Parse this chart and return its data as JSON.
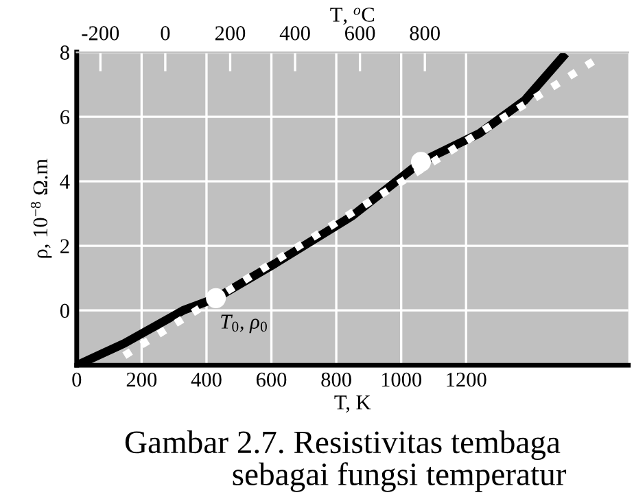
{
  "chart_data": {
    "type": "line",
    "xlabel": "T, K",
    "ylabel": "ρ, 10$^{−8}$ Ω.m",
    "x2label": "T, $^{o}$C",
    "xlim": [
      0,
      1700
    ],
    "xticks": [
      0,
      200,
      400,
      600,
      800,
      1000,
      1200
    ],
    "x2lim": [
      -273,
      1427
    ],
    "x2ticks": [
      -200,
      0,
      200,
      400,
      600,
      800
    ],
    "ylim": [
      -1.7,
      8
    ],
    "yticks": [
      0,
      2,
      4,
      6,
      8
    ],
    "grid": true,
    "legend": false,
    "series": [
      {
        "color": "#000000",
        "line_style": "solid",
        "x": [
          0,
          147,
          328,
          429,
          611,
          851,
          1061,
          1242,
          1381,
          1507
        ],
        "values": [
          -1.7,
          -1.02,
          0.0,
          0.38,
          1.45,
          2.94,
          4.6,
          5.49,
          6.51,
          7.96
        ]
      },
      {
        "color": "#ffffff",
        "line_style": "dotted",
        "x": [
          147,
          1621
        ],
        "values": [
          -1.4,
          7.9
        ]
      },
      {
        "type": "scatter",
        "color": "#ffffff",
        "marker": "circle",
        "x": [
          429,
          1061
        ],
        "values": [
          0.38,
          4.6
        ]
      }
    ],
    "annotations": [
      {
        "text": "T$_{0}$, ρ$_{0}$",
        "x": 429,
        "y": 0.38
      },
      "Gambar 2.7. Resistivitas tembaga\n              sebagai fungsi temperatur"
    ]
  }
}
